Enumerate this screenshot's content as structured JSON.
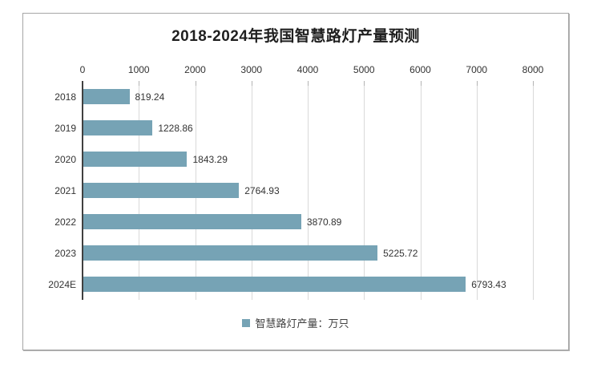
{
  "chart_data": {
    "type": "bar",
    "orientation": "horizontal",
    "title": "2018-2024年我国智慧路灯产量预测",
    "categories": [
      "2018",
      "2019",
      "2020",
      "2021",
      "2022",
      "2023",
      "2024E"
    ],
    "values": [
      819.24,
      1228.86,
      1843.29,
      2764.93,
      3870.89,
      5225.72,
      6793.43
    ],
    "value_labels": [
      "819.24",
      "1228.86",
      "1843.29",
      "2764.93",
      "3870.89",
      "5225.72",
      "6793.43"
    ],
    "xlabel": "",
    "ylabel": "",
    "x_axis": {
      "position": "top",
      "min": 0,
      "max": 8000,
      "tick_interval": 1000,
      "tick_labels": [
        "0",
        "1000",
        "2000",
        "3000",
        "4000",
        "5000",
        "6000",
        "7000",
        "8000"
      ]
    },
    "legend": {
      "position": "bottom",
      "entries": [
        {
          "label": "智慧路灯产量：万只",
          "color": "#76a3b5"
        }
      ]
    },
    "grid": true,
    "colors": {
      "bar": "#76a3b5",
      "gridline": "#d9d9d9",
      "tick": "#b3b3b3",
      "axis_line": "#404040",
      "text": "#333333",
      "title": "#1f1f1f",
      "box_border": "#a6a6a6"
    }
  }
}
